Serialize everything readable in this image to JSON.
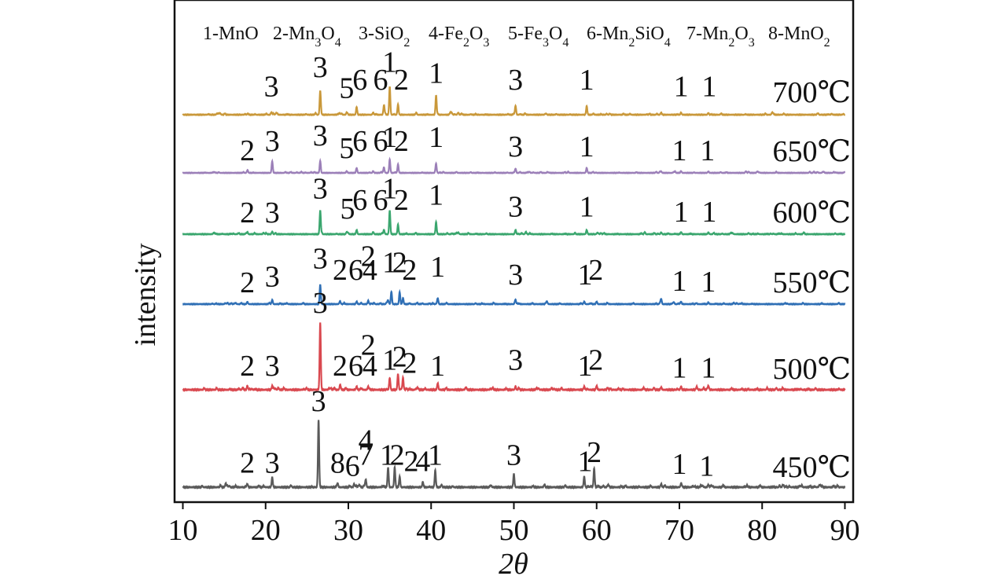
{
  "chart_data": {
    "type": "line",
    "xlabel": "2θ",
    "ylabel": "intensity",
    "xlim": [
      9,
      91
    ],
    "xticks": [
      "10",
      "20",
      "30",
      "40",
      "50",
      "60",
      "70",
      "80",
      "90"
    ],
    "xtick_values": [
      10,
      20,
      30,
      40,
      50,
      60,
      70,
      80,
      90
    ],
    "legend": [
      {
        "num": "1",
        "formula": "MnO",
        "html": "1-MnO"
      },
      {
        "num": "2",
        "formula": "Mn3O4",
        "html": "2-Mn<tspan baseline-shift='sub' font-size='16'>3</tspan>O<tspan baseline-shift='sub' font-size='16'>4</tspan>"
      },
      {
        "num": "3",
        "formula": "SiO2",
        "html": "3-SiO<tspan baseline-shift='sub' font-size='16'>2</tspan>"
      },
      {
        "num": "4",
        "formula": "Fe2O3",
        "html": "4-Fe<tspan baseline-shift='sub' font-size='16'>2</tspan>O<tspan baseline-shift='sub' font-size='16'>3</tspan>"
      },
      {
        "num": "5",
        "formula": "Fe3O4",
        "html": "5-Fe<tspan baseline-shift='sub' font-size='16'>3</tspan>O<tspan baseline-shift='sub' font-size='16'>4</tspan>"
      },
      {
        "num": "6",
        "formula": "Mn2SiO4",
        "html": "6-Mn<tspan baseline-shift='sub' font-size='16'>2</tspan>SiO<tspan baseline-shift='sub' font-size='16'>4</tspan>"
      },
      {
        "num": "7",
        "formula": "Mn2O3",
        "html": "7-Mn<tspan baseline-shift='sub' font-size='16'>2</tspan>O<tspan baseline-shift='sub' font-size='16'>3</tspan>"
      },
      {
        "num": "8",
        "formula": "MnO2",
        "html": "8-MnO<tspan baseline-shift='sub' font-size='16'>2</tspan>"
      }
    ],
    "series": [
      {
        "name": "700℃",
        "color": "#c9983a",
        "peaks": [
          [
            20.7,
            0.06
          ],
          [
            26.6,
            0.55
          ],
          [
            29.8,
            0.05
          ],
          [
            31.0,
            0.18
          ],
          [
            33.0,
            0.05
          ],
          [
            34.3,
            0.22
          ],
          [
            35.0,
            0.65
          ],
          [
            36.0,
            0.24
          ],
          [
            38.2,
            0.05
          ],
          [
            40.6,
            0.45
          ],
          [
            42.5,
            0.04
          ],
          [
            50.2,
            0.18
          ],
          [
            58.8,
            0.2
          ],
          [
            67.8,
            0.05
          ],
          [
            70.2,
            0.05
          ],
          [
            73.5,
            0.04
          ],
          [
            81.2,
            0.05
          ]
        ],
        "labels": [
          {
            "t": "3",
            "x": 20.7,
            "h": 0.25
          },
          {
            "t": "3",
            "x": 26.6,
            "h": 0.75
          },
          {
            "t": "5",
            "x": 29.8,
            "h": 0.21
          },
          {
            "t": "6",
            "x": 31.4,
            "h": 0.42
          },
          {
            "t": "6",
            "x": 33.9,
            "h": 0.42
          },
          {
            "t": "1",
            "x": 35.0,
            "h": 0.88
          },
          {
            "t": "2",
            "x": 36.4,
            "h": 0.42
          },
          {
            "t": "1",
            "x": 40.6,
            "h": 0.6
          },
          {
            "t": "3",
            "x": 50.2,
            "h": 0.42
          },
          {
            "t": "1",
            "x": 58.8,
            "h": 0.42
          },
          {
            "t": "1",
            "x": 70.2,
            "h": 0.25
          },
          {
            "t": "1",
            "x": 73.6,
            "h": 0.25
          }
        ]
      },
      {
        "name": "650℃",
        "color": "#9b7fb8",
        "peaks": [
          [
            17.8,
            0.05
          ],
          [
            20.8,
            0.28
          ],
          [
            26.6,
            0.34
          ],
          [
            29.8,
            0.05
          ],
          [
            31.0,
            0.14
          ],
          [
            33.0,
            0.05
          ],
          [
            34.3,
            0.14
          ],
          [
            35.0,
            0.38
          ],
          [
            36.0,
            0.24
          ],
          [
            40.6,
            0.24
          ],
          [
            50.2,
            0.12
          ],
          [
            58.8,
            0.14
          ],
          [
            67.8,
            0.04
          ],
          [
            70.2,
            0.05
          ],
          [
            73.5,
            0.04
          ]
        ],
        "labels": [
          {
            "t": "2",
            "x": 17.8,
            "h": 0.12
          },
          {
            "t": "3",
            "x": 20.8,
            "h": 0.42
          },
          {
            "t": "3",
            "x": 26.6,
            "h": 0.6
          },
          {
            "t": "5",
            "x": 29.8,
            "h": 0.2
          },
          {
            "t": "6",
            "x": 31.4,
            "h": 0.42
          },
          {
            "t": "6",
            "x": 33.9,
            "h": 0.42
          },
          {
            "t": "1",
            "x": 35.0,
            "h": 0.55
          },
          {
            "t": "2",
            "x": 36.4,
            "h": 0.42
          },
          {
            "t": "1",
            "x": 40.6,
            "h": 0.55
          },
          {
            "t": "3",
            "x": 50.2,
            "h": 0.25
          },
          {
            "t": "1",
            "x": 58.8,
            "h": 0.25
          },
          {
            "t": "1",
            "x": 70.0,
            "h": 0.12
          },
          {
            "t": "1",
            "x": 73.4,
            "h": 0.12
          }
        ]
      },
      {
        "name": "600℃",
        "color": "#3aa66e",
        "peaks": [
          [
            17.8,
            0.05
          ],
          [
            20.8,
            0.06
          ],
          [
            26.6,
            0.55
          ],
          [
            29.8,
            0.05
          ],
          [
            31.0,
            0.1
          ],
          [
            33.0,
            0.05
          ],
          [
            34.3,
            0.1
          ],
          [
            35.0,
            0.55
          ],
          [
            36.0,
            0.22
          ],
          [
            40.6,
            0.28
          ],
          [
            50.2,
            0.1
          ],
          [
            58.8,
            0.1
          ],
          [
            67.8,
            0.04
          ],
          [
            70.2,
            0.05
          ],
          [
            73.5,
            0.04
          ]
        ],
        "labels": [
          {
            "t": "2",
            "x": 17.8,
            "h": 0.1
          },
          {
            "t": "3",
            "x": 20.8,
            "h": 0.1
          },
          {
            "t": "3",
            "x": 26.6,
            "h": 0.72
          },
          {
            "t": "5",
            "x": 29.9,
            "h": 0.2
          },
          {
            "t": "6",
            "x": 31.4,
            "h": 0.42
          },
          {
            "t": "6",
            "x": 33.9,
            "h": 0.42
          },
          {
            "t": "1",
            "x": 35.0,
            "h": 0.72
          },
          {
            "t": "2",
            "x": 36.4,
            "h": 0.42
          },
          {
            "t": "1",
            "x": 40.6,
            "h": 0.55
          },
          {
            "t": "3",
            "x": 50.2,
            "h": 0.25
          },
          {
            "t": "1",
            "x": 58.8,
            "h": 0.25
          },
          {
            "t": "1",
            "x": 70.2,
            "h": 0.12
          },
          {
            "t": "1",
            "x": 73.6,
            "h": 0.12
          }
        ]
      },
      {
        "name": "550℃",
        "color": "#2f6fb5",
        "peaks": [
          [
            17.8,
            0.05
          ],
          [
            20.8,
            0.1
          ],
          [
            26.6,
            0.45
          ],
          [
            29.0,
            0.06
          ],
          [
            31.0,
            0.06
          ],
          [
            32.4,
            0.08
          ],
          [
            34.8,
            0.06
          ],
          [
            35.2,
            0.28
          ],
          [
            36.2,
            0.28
          ],
          [
            36.6,
            0.14
          ],
          [
            40.8,
            0.14
          ],
          [
            50.2,
            0.08
          ],
          [
            58.5,
            0.06
          ],
          [
            60.0,
            0.06
          ],
          [
            67.8,
            0.12
          ],
          [
            70.2,
            0.05
          ],
          [
            73.5,
            0.04
          ]
        ],
        "labels": [
          {
            "t": "2",
            "x": 17.8,
            "h": 0.1
          },
          {
            "t": "3",
            "x": 20.8,
            "h": 0.25
          },
          {
            "t": "3",
            "x": 26.6,
            "h": 0.72
          },
          {
            "t": "2",
            "x": 29.0,
            "h": 0.42
          },
          {
            "t": "6",
            "x": 30.9,
            "h": 0.42
          },
          {
            "t": "2",
            "x": 32.4,
            "h": 0.78
          },
          {
            "t": "4",
            "x": 32.6,
            "h": 0.42
          },
          {
            "t": "1",
            "x": 35.0,
            "h": 0.62
          },
          {
            "t": "2",
            "x": 36.2,
            "h": 0.62
          },
          {
            "t": "2",
            "x": 37.4,
            "h": 0.42
          },
          {
            "t": "1",
            "x": 40.8,
            "h": 0.5
          },
          {
            "t": "3",
            "x": 50.2,
            "h": 0.3
          },
          {
            "t": "1",
            "x": 58.6,
            "h": 0.3
          },
          {
            "t": "2",
            "x": 59.9,
            "h": 0.42
          },
          {
            "t": "1",
            "x": 70.0,
            "h": 0.14
          },
          {
            "t": "1",
            "x": 73.5,
            "h": 0.12
          }
        ]
      },
      {
        "name": "500℃",
        "color": "#d9484f",
        "peaks": [
          [
            17.8,
            0.05
          ],
          [
            20.8,
            0.06
          ],
          [
            26.6,
            1.0
          ],
          [
            29.0,
            0.05
          ],
          [
            31.0,
            0.05
          ],
          [
            32.4,
            0.05
          ],
          [
            35.0,
            0.18
          ],
          [
            36.0,
            0.24
          ],
          [
            36.6,
            0.18
          ],
          [
            40.8,
            0.1
          ],
          [
            50.2,
            0.05
          ],
          [
            58.5,
            0.05
          ],
          [
            60.0,
            0.06
          ],
          [
            67.8,
            0.04
          ],
          [
            70.2,
            0.05
          ],
          [
            73.5,
            0.04
          ]
        ],
        "labels": [
          {
            "t": "2",
            "x": 17.8,
            "h": 0.15
          },
          {
            "t": "3",
            "x": 20.8,
            "h": 0.15
          },
          {
            "t": "3",
            "x": 26.6,
            "h": 1.2
          },
          {
            "t": "2",
            "x": 29.0,
            "h": 0.15
          },
          {
            "t": "6",
            "x": 30.9,
            "h": 0.15
          },
          {
            "t": "2",
            "x": 32.4,
            "h": 0.5
          },
          {
            "t": "4",
            "x": 32.6,
            "h": 0.15
          },
          {
            "t": "1",
            "x": 35.0,
            "h": 0.25
          },
          {
            "t": "2",
            "x": 36.2,
            "h": 0.3
          },
          {
            "t": "2",
            "x": 37.4,
            "h": 0.2
          },
          {
            "t": "1",
            "x": 40.8,
            "h": 0.15
          },
          {
            "t": "3",
            "x": 50.2,
            "h": 0.25
          },
          {
            "t": "1",
            "x": 58.6,
            "h": 0.15
          },
          {
            "t": "2",
            "x": 59.9,
            "h": 0.25
          },
          {
            "t": "1",
            "x": 70.0,
            "h": 0.12
          },
          {
            "t": "1",
            "x": 73.5,
            "h": 0.12
          }
        ]
      },
      {
        "name": "450℃",
        "color": "#5a5a5a",
        "peaks": [
          [
            17.8,
            0.05
          ],
          [
            20.8,
            0.15
          ],
          [
            26.4,
            1.0
          ],
          [
            28.7,
            0.06
          ],
          [
            30.7,
            0.05
          ],
          [
            32.1,
            0.12
          ],
          [
            34.8,
            0.3
          ],
          [
            35.6,
            0.3
          ],
          [
            36.2,
            0.16
          ],
          [
            39.0,
            0.08
          ],
          [
            40.5,
            0.24
          ],
          [
            50.0,
            0.2
          ],
          [
            58.5,
            0.16
          ],
          [
            59.7,
            0.28
          ],
          [
            67.8,
            0.05
          ],
          [
            70.2,
            0.05
          ],
          [
            73.5,
            0.04
          ]
        ],
        "labels": [
          {
            "t": "2",
            "x": 17.8,
            "h": 0.17
          },
          {
            "t": "3",
            "x": 20.8,
            "h": 0.17
          },
          {
            "t": "3",
            "x": 26.4,
            "h": 1.2
          },
          {
            "t": "8",
            "x": 28.7,
            "h": 0.17
          },
          {
            "t": "6",
            "x": 30.5,
            "h": 0.12
          },
          {
            "t": "4",
            "x": 32.1,
            "h": 0.55
          },
          {
            "t": "7",
            "x": 32.1,
            "h": 0.3
          },
          {
            "t": "1",
            "x": 34.7,
            "h": 0.3
          },
          {
            "t": "2",
            "x": 35.9,
            "h": 0.3
          },
          {
            "t": "2",
            "x": 37.6,
            "h": 0.2
          },
          {
            "t": "4",
            "x": 39.0,
            "h": 0.2
          },
          {
            "t": "1",
            "x": 40.5,
            "h": 0.3
          },
          {
            "t": "3",
            "x": 50.0,
            "h": 0.3
          },
          {
            "t": "1",
            "x": 58.6,
            "h": 0.2
          },
          {
            "t": "2",
            "x": 59.7,
            "h": 0.35
          },
          {
            "t": "1",
            "x": 70.0,
            "h": 0.15
          },
          {
            "t": "1",
            "x": 73.3,
            "h": 0.12
          }
        ]
      }
    ]
  }
}
